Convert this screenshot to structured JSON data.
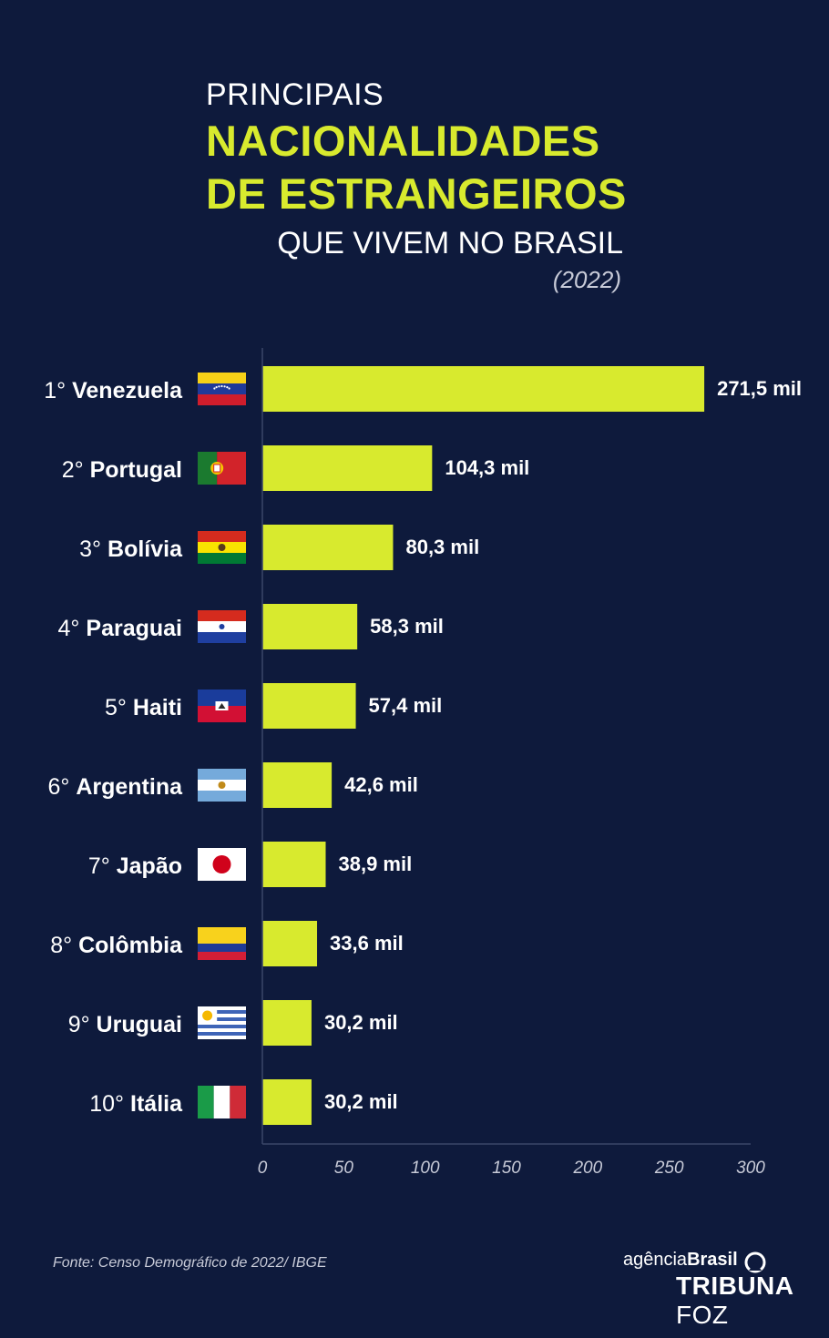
{
  "header": {
    "line1": "PRINCIPAIS",
    "line2": "NACIONALIDADES",
    "line3": "DE ESTRANGEIROS",
    "line4": "QUE VIVEM NO BRASIL",
    "year": "(2022)"
  },
  "colors": {
    "background": "#0e1a3c",
    "bar": "#d8ea2e",
    "title_accent": "#d8ea2e"
  },
  "chart_data": {
    "type": "bar",
    "orientation": "horizontal",
    "categories": [
      "1° Venezuela",
      "2° Portugal",
      "3° Bolívia",
      "4° Paraguai",
      "5° Haiti",
      "6° Argentina",
      "7° Japão",
      "8° Colômbia",
      "9° Uruguai",
      "10° Itália"
    ],
    "ranks": [
      "1°",
      "2°",
      "3°",
      "4°",
      "5°",
      "6°",
      "7°",
      "8°",
      "9°",
      "10°"
    ],
    "countries": [
      "Venezuela",
      "Portugal",
      "Bolívia",
      "Paraguai",
      "Haiti",
      "Argentina",
      "Japão",
      "Colômbia",
      "Uruguai",
      "Itália"
    ],
    "flags": [
      "venezuela-flag",
      "portugal-flag",
      "bolivia-flag",
      "paraguay-flag",
      "haiti-flag",
      "argentina-flag",
      "japan-flag",
      "colombia-flag",
      "uruguay-flag",
      "italy-flag"
    ],
    "values": [
      271.5,
      104.3,
      80.3,
      58.3,
      57.4,
      42.6,
      38.9,
      33.6,
      30.2,
      30.2
    ],
    "data_labels": [
      "271,5 mil",
      "104,3 mil",
      "80,3 mil",
      "58,3 mil",
      "57,4 mil",
      "42,6 mil",
      "38,9 mil",
      "33,6 mil",
      "30,2 mil",
      "30,2 mil"
    ],
    "xticks": [
      "0",
      "50",
      "100",
      "150",
      "200",
      "250",
      "300"
    ],
    "xlim": [
      0,
      300
    ],
    "grid": false
  },
  "footer": {
    "source": "Fonte:  Censo Demográfico de 2022/ IBGE",
    "brand_a": "agência",
    "brand_b": "Brasil",
    "brand2_a": "TRIBUNA",
    "brand2_b": "FOZ"
  }
}
